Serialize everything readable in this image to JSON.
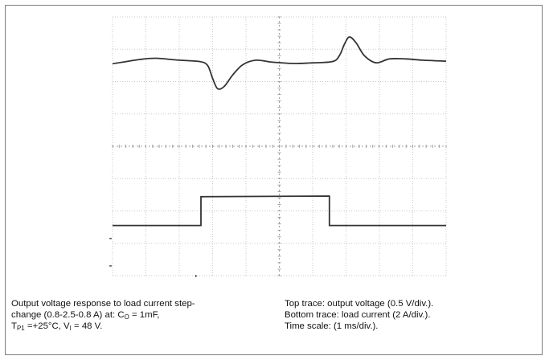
{
  "chart_data": {
    "type": "line",
    "title": "",
    "xlabel": "",
    "ylabel": "",
    "grid": true,
    "x_divisions": 10,
    "y_divisions": 8,
    "x_units_per_div": "1 ms/div.",
    "series": [
      {
        "name": "Top trace: output voltage (0.5 V/div.)",
        "x_div": [
          0,
          0.3,
          0.8,
          1.3,
          2.0,
          2.6,
          2.85,
          3.0,
          3.15,
          3.35,
          3.6,
          3.9,
          4.3,
          4.8,
          5.4,
          6.0,
          6.6,
          6.8,
          6.95,
          7.1,
          7.3,
          7.55,
          7.9,
          8.3,
          8.8,
          9.3,
          10.0
        ],
        "y_div": [
          6.55,
          6.6,
          6.68,
          6.72,
          6.66,
          6.62,
          6.5,
          6.1,
          5.78,
          5.85,
          6.2,
          6.52,
          6.66,
          6.6,
          6.56,
          6.58,
          6.62,
          6.8,
          7.15,
          7.38,
          7.2,
          6.8,
          6.58,
          6.7,
          6.7,
          6.66,
          6.63
        ]
      },
      {
        "name": "Bottom trace: load current (2 A/div.)",
        "step_values_A": [
          0.8,
          2.5,
          0.8
        ],
        "x_div": [
          0,
          2.65,
          2.65,
          6.5,
          6.5,
          10.0
        ],
        "y_div": [
          1.55,
          1.55,
          2.44,
          2.46,
          1.55,
          1.55
        ]
      }
    ]
  },
  "caption": {
    "left_line1": "Output voltage response to load current step-",
    "left_line2_pre": "change (0.8-2.5-0.8 A) at: C",
    "left_line2_sub": "O",
    "left_line2_post": " = 1mF,",
    "left_line3_a": "T",
    "left_line3_sub1": "P1",
    "left_line3_b": " =+25°C, V",
    "left_line3_sub2": "I",
    "left_line3_c": " = 48 V.",
    "right_line1": "Top trace: output voltage (0.5 V/div.).",
    "right_line2": "Bottom trace: load current (2 A/div.).",
    "right_line3": "Time scale: (1 ms/div.)."
  },
  "colors": {
    "frame": "#7d7d7d",
    "grid": "#c8c8c8",
    "grid_center": "#a0a0a0",
    "trace": "#333333"
  }
}
